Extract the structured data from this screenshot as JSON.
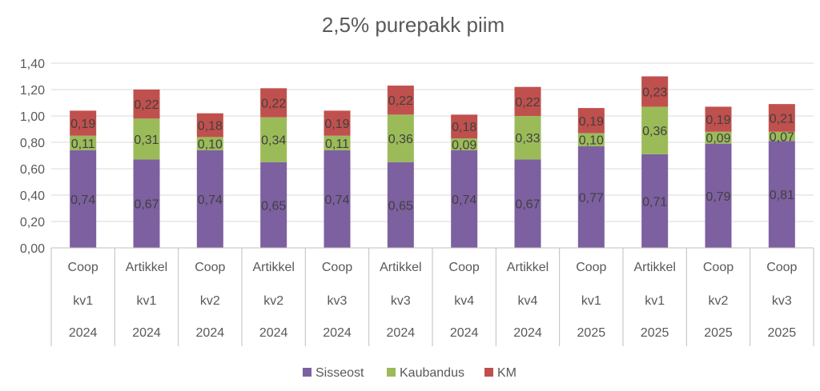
{
  "colors": {
    "Sisseost": "#7d60a0",
    "Kaubandus": "#9bbb59",
    "KM": "#c0504d",
    "grid": "#d9d9d9",
    "axis": "#bfbfbf",
    "text": "#595959"
  },
  "chart_data": {
    "type": "bar",
    "stacked": true,
    "title": "2,5% purepakk piim",
    "ylim": [
      0,
      1.4
    ],
    "yticks": [
      "0,00",
      "0,20",
      "0,40",
      "0,60",
      "0,80",
      "1,00",
      "1,20",
      "1,40"
    ],
    "grid": true,
    "legend_position": "bottom",
    "categories": [
      [
        "Coop",
        "kv1",
        "2024"
      ],
      [
        "Artikkel",
        "kv1",
        "2024"
      ],
      [
        "Coop",
        "kv2",
        "2024"
      ],
      [
        "Artikkel",
        "kv2",
        "2024"
      ],
      [
        "Coop",
        "kv3",
        "2024"
      ],
      [
        "Artikkel",
        "kv3",
        "2024"
      ],
      [
        "Coop",
        "kv4",
        "2024"
      ],
      [
        "Artikkel",
        "kv4",
        "2024"
      ],
      [
        "Coop",
        "kv1",
        "2025"
      ],
      [
        "Artikkel",
        "kv1",
        "2025"
      ],
      [
        "Coop",
        "kv2",
        "2025"
      ],
      [
        "Coop",
        "kv3",
        "2025"
      ]
    ],
    "series": [
      {
        "name": "Sisseost",
        "values": [
          0.74,
          0.67,
          0.74,
          0.65,
          0.74,
          0.65,
          0.74,
          0.67,
          0.77,
          0.71,
          0.79,
          0.81
        ],
        "labels": [
          "0,74",
          "0,67",
          "0,74",
          "0,65",
          "0,74",
          "0,65",
          "0,74",
          "0,67",
          "0,77",
          "0,71",
          "0,79",
          "0,81"
        ]
      },
      {
        "name": "Kaubandus",
        "values": [
          0.11,
          0.31,
          0.1,
          0.34,
          0.11,
          0.36,
          0.09,
          0.33,
          0.1,
          0.36,
          0.09,
          0.07
        ],
        "labels": [
          "0,11",
          "0,31",
          "0,10",
          "0,34",
          "0,11",
          "0,36",
          "0,09",
          "0,33",
          "0,10",
          "0,36",
          "0,09",
          "0,07"
        ]
      },
      {
        "name": "KM",
        "values": [
          0.19,
          0.22,
          0.18,
          0.22,
          0.19,
          0.22,
          0.18,
          0.22,
          0.19,
          0.23,
          0.19,
          0.21
        ],
        "labels": [
          "0,19",
          "0,22",
          "0,18",
          "0,22",
          "0,19",
          "0,22",
          "0,18",
          "0,22",
          "0,19",
          "0,23",
          "0,19",
          "0,21"
        ]
      }
    ]
  }
}
